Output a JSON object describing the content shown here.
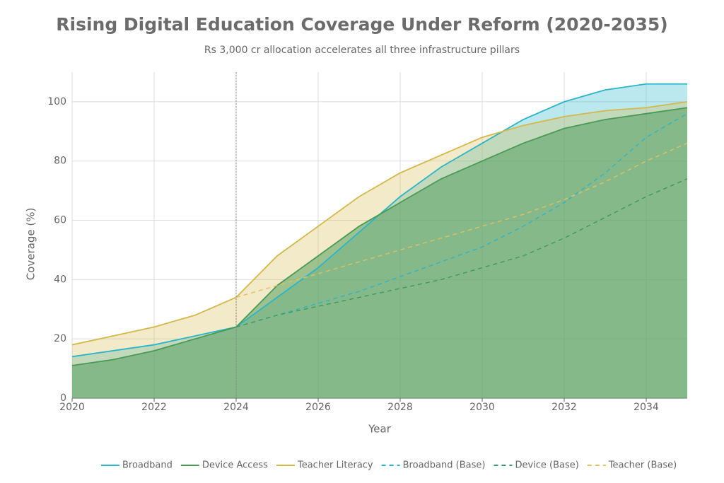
{
  "chart_data": {
    "type": "line",
    "title": "Rising Digital Education Coverage Under Reform (2020-2035)",
    "subtitle": "Rs 3,000 cr allocation accelerates all three infrastructure pillars",
    "x_label": "Year",
    "y_label": "Coverage (%)",
    "x": [
      2020,
      2021,
      2022,
      2023,
      2024,
      2025,
      2026,
      2027,
      2028,
      2029,
      2030,
      2031,
      2032,
      2033,
      2034,
      2035
    ],
    "xlim": [
      2020,
      2035
    ],
    "xticks": [
      2020,
      2022,
      2024,
      2026,
      2028,
      2030,
      2032,
      2034
    ],
    "ylim": [
      0,
      110
    ],
    "yticks": [
      0,
      20,
      40,
      60,
      80,
      100
    ],
    "grid": true,
    "reference_x": 2024,
    "legend": "bottom",
    "series": [
      {
        "name": "Broadband",
        "color": "#2bb5c9",
        "fill": true,
        "dashed": false,
        "values": [
          14,
          16,
          18,
          21,
          24,
          34,
          44,
          56,
          68,
          78,
          86,
          94,
          100,
          104,
          106,
          106
        ]
      },
      {
        "name": "Device Access",
        "color": "#4a9a55",
        "fill": true,
        "dashed": false,
        "values": [
          11,
          13,
          16,
          20,
          24,
          38,
          48,
          58,
          66,
          74,
          80,
          86,
          91,
          94,
          96,
          98
        ]
      },
      {
        "name": "Teacher Literacy",
        "color": "#d4b84a",
        "fill": true,
        "dashed": false,
        "values": [
          18,
          21,
          24,
          28,
          34,
          48,
          58,
          68,
          76,
          82,
          88,
          92,
          95,
          97,
          98,
          100
        ]
      },
      {
        "name": "Broadband (Base)",
        "color": "#2bb5c9",
        "fill": false,
        "dashed": true,
        "values": [
          null,
          null,
          null,
          null,
          24,
          28,
          32,
          36,
          41,
          46,
          51,
          58,
          66,
          76,
          88,
          96
        ]
      },
      {
        "name": "Device (Base)",
        "color": "#3a9a60",
        "fill": false,
        "dashed": true,
        "values": [
          null,
          null,
          null,
          null,
          24,
          28,
          31,
          34,
          37,
          40,
          44,
          48,
          54,
          61,
          68,
          74
        ]
      },
      {
        "name": "Teacher (Base)",
        "color": "#e0c060",
        "fill": false,
        "dashed": true,
        "values": [
          null,
          null,
          null,
          null,
          34,
          38,
          42,
          46,
          50,
          54,
          58,
          62,
          67,
          73,
          80,
          86
        ]
      }
    ]
  }
}
